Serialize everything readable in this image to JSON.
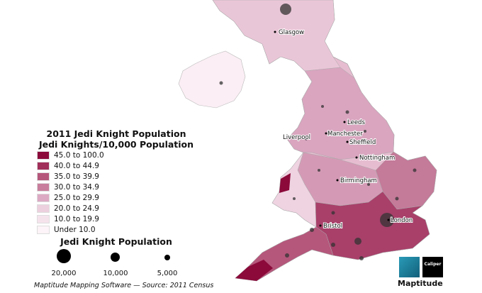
{
  "legend": {
    "title": "2011 Jedi Knight Population",
    "subtitle": "Jedi Knights/10,000 Population",
    "classes": [
      {
        "label": "45.0 to 100.0",
        "color": "#8b0a3a"
      },
      {
        "label": "40.0 to 44.9",
        "color": "#a02f5a"
      },
      {
        "label": "35.0 to 39.9",
        "color": "#b5577b"
      },
      {
        "label": "30.0 to 34.9",
        "color": "#c87e9c"
      },
      {
        "label": "25.0 to 29.9",
        "color": "#dcaac3"
      },
      {
        "label": "20.0 to 24.9",
        "color": "#ecd0de"
      },
      {
        "label": "10.0 to 19.9",
        "color": "#f5e3ec"
      },
      {
        "label": "Under 10.0",
        "color": "#fcf4f8"
      }
    ],
    "size_title": "Jedi Knight Population",
    "sizes": [
      {
        "label": "20,000",
        "value": 20000
      },
      {
        "label": "10,000",
        "value": 10000
      },
      {
        "label": "5,000",
        "value": 5000
      }
    ]
  },
  "cities": [
    "Glasgow",
    "Leeds",
    "Manchester",
    "Liverpool",
    "Sheffield",
    "Nottingham",
    "Birmingham",
    "Bristol",
    "London"
  ],
  "source": "Maptitude Mapping Software — Source: 2011 Census",
  "logo": {
    "product": "Maptitude",
    "company": "Caliper"
  }
}
